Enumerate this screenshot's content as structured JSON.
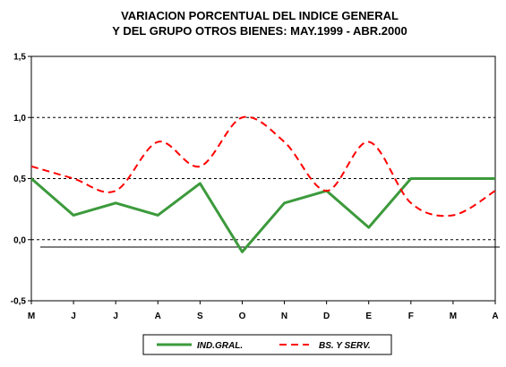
{
  "chart_data": {
    "type": "line",
    "title": "VARIACION PORCENTUAL DEL INDICE GENERAL",
    "subtitle": "Y DEL GRUPO OTROS BIENES: MAY.1999 -  ABR.2000",
    "categories": [
      "M",
      "J",
      "J",
      "A",
      "S",
      "O",
      "N",
      "D",
      "E",
      "F",
      "M",
      "A"
    ],
    "ylim": [
      -0.5,
      1.5
    ],
    "yticks": [
      -0.5,
      0.0,
      0.5,
      1.0,
      1.5
    ],
    "ytick_labels": [
      "-0,5",
      "0,0",
      "0,5",
      "1,0",
      "1,5"
    ],
    "gridlines": [
      0.0,
      0.5,
      1.0
    ],
    "legend_position": "bottom",
    "series": [
      {
        "name": "IND.GRAL.",
        "color": "#3c9a3c",
        "style": "solid",
        "values": [
          0.5,
          0.2,
          0.3,
          0.2,
          0.46,
          -0.1,
          0.3,
          0.4,
          0.1,
          0.5,
          0.5,
          0.5
        ]
      },
      {
        "name": "BS. Y SERV.",
        "color": "#ff0000",
        "style": "dashed",
        "smooth": true,
        "values": [
          0.6,
          0.5,
          0.4,
          0.8,
          0.6,
          1.0,
          0.8,
          0.4,
          0.8,
          0.3,
          0.2,
          0.4
        ]
      }
    ]
  }
}
